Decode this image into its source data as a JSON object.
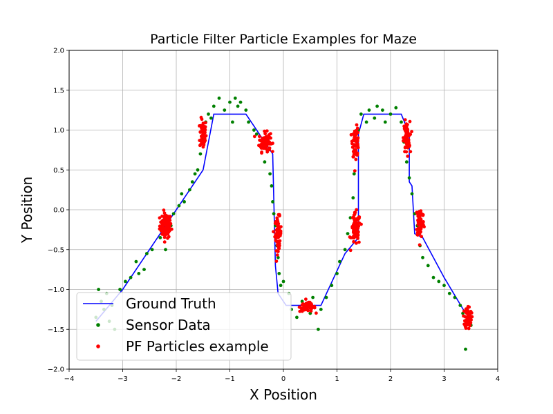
{
  "chart_data": {
    "type": "scatter",
    "title": "Particle Filter Particle Examples for Maze",
    "xlabel": "X Position",
    "ylabel": "Y Position",
    "xlim": [
      -4,
      4
    ],
    "ylim": [
      -2,
      2
    ],
    "xticks": [
      "−4",
      "−3",
      "−2",
      "−1",
      "0",
      "1",
      "2",
      "3",
      "4"
    ],
    "yticks": [
      "−2.0",
      "−1.5",
      "−1.0",
      "−0.5",
      "0.0",
      "0.5",
      "1.0",
      "1.5",
      "2.0"
    ],
    "xtick_values": [
      -4,
      -3,
      -2,
      -1,
      0,
      1,
      2,
      3,
      4
    ],
    "ytick_values": [
      -2.0,
      -1.5,
      -1.0,
      -0.5,
      0.0,
      0.5,
      1.0,
      1.5,
      2.0
    ],
    "grid": true,
    "legend_position": "lower-left",
    "series": [
      {
        "name": "Ground Truth",
        "kind": "line",
        "color": "#0000ff",
        "points": [
          [
            -3.5,
            -1.4
          ],
          [
            -3.0,
            -1.0
          ],
          [
            -1.5,
            0.5
          ],
          [
            -1.3,
            1.2
          ],
          [
            -0.7,
            1.2
          ],
          [
            -0.2,
            0.7
          ],
          [
            -0.15,
            -0.7
          ],
          [
            -0.1,
            -1.05
          ],
          [
            0.05,
            -1.2
          ],
          [
            0.7,
            -1.2
          ],
          [
            1.15,
            -0.55
          ],
          [
            1.4,
            -0.35
          ],
          [
            1.4,
            0.95
          ],
          [
            1.5,
            1.2
          ],
          [
            2.2,
            1.2
          ],
          [
            2.35,
            0.95
          ],
          [
            2.35,
            0.35
          ],
          [
            2.4,
            0.3
          ],
          [
            2.45,
            -0.3
          ],
          [
            2.6,
            -0.35
          ],
          [
            3.0,
            -0.85
          ],
          [
            3.4,
            -1.3
          ]
        ]
      },
      {
        "name": "Sensor Data",
        "kind": "scatter",
        "color": "#008000",
        "points": [
          [
            -3.5,
            -1.35
          ],
          [
            -3.45,
            -1.0
          ],
          [
            -3.4,
            -1.15
          ],
          [
            -3.35,
            -1.25
          ],
          [
            -3.3,
            -1.05
          ],
          [
            -3.25,
            -1.4
          ],
          [
            -3.2,
            -1.2
          ],
          [
            -3.15,
            -1.5
          ],
          [
            -3.05,
            -1.0
          ],
          [
            -2.95,
            -0.9
          ],
          [
            -2.85,
            -0.85
          ],
          [
            -2.75,
            -0.65
          ],
          [
            -2.7,
            -0.8
          ],
          [
            -2.6,
            -0.75
          ],
          [
            -2.55,
            -0.55
          ],
          [
            -2.45,
            -0.5
          ],
          [
            -2.3,
            -0.35
          ],
          [
            -2.2,
            -0.5
          ],
          [
            -2.1,
            -0.2
          ],
          [
            -2.05,
            -0.05
          ],
          [
            -1.95,
            0.05
          ],
          [
            -1.9,
            0.2
          ],
          [
            -1.85,
            0.1
          ],
          [
            -1.75,
            0.25
          ],
          [
            -1.7,
            0.35
          ],
          [
            -1.65,
            0.45
          ],
          [
            -1.6,
            0.5
          ],
          [
            -1.55,
            0.7
          ],
          [
            -1.5,
            0.9
          ],
          [
            -1.45,
            1.1
          ],
          [
            -1.4,
            1.2
          ],
          [
            -1.35,
            1.15
          ],
          [
            -1.3,
            1.3
          ],
          [
            -1.2,
            1.4
          ],
          [
            -1.1,
            1.25
          ],
          [
            -1.0,
            1.35
          ],
          [
            -0.95,
            1.1
          ],
          [
            -0.9,
            1.4
          ],
          [
            -0.85,
            1.3
          ],
          [
            -0.8,
            1.35
          ],
          [
            -0.7,
            1.25
          ],
          [
            -0.65,
            1.1
          ],
          [
            -0.55,
            1.0
          ],
          [
            -0.5,
            0.95
          ],
          [
            -0.4,
            0.8
          ],
          [
            -0.35,
            0.6
          ],
          [
            -0.3,
            0.75
          ],
          [
            -0.25,
            0.45
          ],
          [
            -0.22,
            0.3
          ],
          [
            -0.2,
            0.1
          ],
          [
            -0.18,
            -0.05
          ],
          [
            -0.15,
            -0.2
          ],
          [
            -0.12,
            -0.45
          ],
          [
            -0.1,
            -0.6
          ],
          [
            -0.08,
            -0.8
          ],
          [
            -0.05,
            -0.95
          ],
          [
            0.0,
            -0.9
          ],
          [
            0.1,
            -1.05
          ],
          [
            0.15,
            -1.25
          ],
          [
            0.25,
            -1.35
          ],
          [
            0.35,
            -1.15
          ],
          [
            0.5,
            -1.3
          ],
          [
            0.55,
            -1.1
          ],
          [
            0.65,
            -1.5
          ],
          [
            0.7,
            -1.25
          ],
          [
            0.8,
            -1.1
          ],
          [
            0.9,
            -0.95
          ],
          [
            1.0,
            -0.8
          ],
          [
            1.05,
            -0.65
          ],
          [
            1.15,
            -0.5
          ],
          [
            1.2,
            -0.3
          ],
          [
            1.25,
            -0.1
          ],
          [
            1.3,
            0.15
          ],
          [
            1.32,
            0.45
          ],
          [
            1.35,
            0.75
          ],
          [
            1.4,
            1.0
          ],
          [
            1.45,
            1.2
          ],
          [
            1.55,
            1.1
          ],
          [
            1.6,
            1.25
          ],
          [
            1.7,
            1.15
          ],
          [
            1.75,
            1.3
          ],
          [
            1.85,
            1.25
          ],
          [
            1.9,
            1.1
          ],
          [
            2.0,
            1.2
          ],
          [
            2.1,
            1.28
          ],
          [
            2.2,
            1.1
          ],
          [
            2.25,
            0.85
          ],
          [
            2.3,
            0.6
          ],
          [
            2.35,
            0.4
          ],
          [
            2.4,
            0.2
          ],
          [
            2.45,
            -0.05
          ],
          [
            2.5,
            -0.2
          ],
          [
            2.55,
            -0.45
          ],
          [
            2.6,
            -0.6
          ],
          [
            2.7,
            -0.7
          ],
          [
            2.8,
            -0.85
          ],
          [
            2.9,
            -0.9
          ],
          [
            3.0,
            -0.95
          ],
          [
            3.1,
            -1.05
          ],
          [
            3.2,
            -1.1
          ],
          [
            3.3,
            -1.2
          ],
          [
            3.35,
            -1.3
          ],
          [
            3.4,
            -1.75
          ],
          [
            3.5,
            -1.45
          ]
        ]
      },
      {
        "name": "PF Particles example",
        "kind": "scatter",
        "color": "#ff0000",
        "clusters": [
          {
            "center": [
              -2.2,
              -0.2
            ],
            "spread": [
              0.09,
              0.13
            ],
            "count": 90
          },
          {
            "center": [
              -1.5,
              0.95
            ],
            "spread": [
              0.05,
              0.16
            ],
            "count": 70
          },
          {
            "center": [
              -0.35,
              0.85
            ],
            "spread": [
              0.09,
              0.1
            ],
            "count": 80
          },
          {
            "center": [
              -0.1,
              -0.3
            ],
            "spread": [
              0.05,
              0.17
            ],
            "count": 70
          },
          {
            "center": [
              0.45,
              -1.22
            ],
            "spread": [
              0.12,
              0.05
            ],
            "count": 70
          },
          {
            "center": [
              1.35,
              -0.25
            ],
            "spread": [
              0.07,
              0.17
            ],
            "count": 80
          },
          {
            "center": [
              1.35,
              0.85
            ],
            "spread": [
              0.05,
              0.15
            ],
            "count": 70
          },
          {
            "center": [
              2.3,
              0.9
            ],
            "spread": [
              0.05,
              0.17
            ],
            "count": 70
          },
          {
            "center": [
              2.55,
              -0.15
            ],
            "spread": [
              0.06,
              0.17
            ],
            "count": 70
          },
          {
            "center": [
              3.45,
              -1.35
            ],
            "spread": [
              0.05,
              0.12
            ],
            "count": 70
          }
        ]
      }
    ]
  }
}
